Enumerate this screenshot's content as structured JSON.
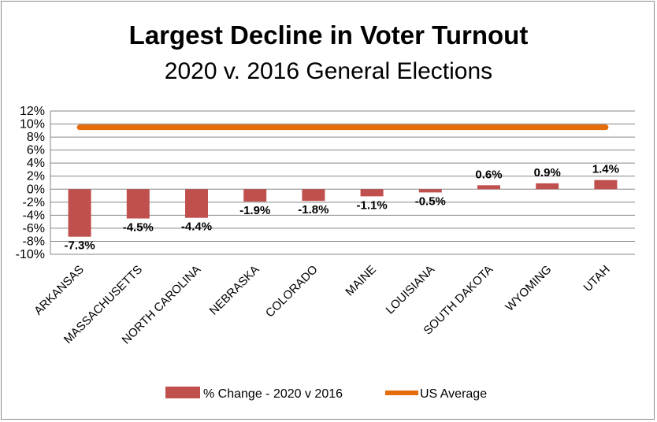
{
  "chart_data": {
    "type": "bar",
    "title": "Largest Decline in Voter Turnout",
    "subtitle": "2020 v. 2016 General Elections",
    "categories": [
      "ARKANSAS",
      "MASSACHUSETTS",
      "NORTH CAROLINA",
      "NEBRASKA",
      "COLORADO",
      "MAINE",
      "LOUISIANA",
      "SOUTH DAKOTA",
      "WYOMING",
      "UTAH"
    ],
    "series": [
      {
        "name": "% Change - 2020 v 2016",
        "type": "bar",
        "color": "#c0504d",
        "values": [
          -7.3,
          -4.5,
          -4.4,
          -1.9,
          -1.8,
          -1.1,
          -0.5,
          0.6,
          0.9,
          1.4
        ],
        "labels": [
          "-7.3%",
          "-4.5%",
          "-4.4%",
          "-1.9%",
          "-1.8%",
          "-1.1%",
          "-0.5%",
          "0.6%",
          "0.9%",
          "1.4%"
        ]
      },
      {
        "name": "US Average",
        "type": "line",
        "color": "#e46c0a",
        "value": 9.5
      }
    ],
    "ylim": [
      -10,
      12
    ],
    "ytick_values": [
      12,
      10,
      8,
      6,
      4,
      2,
      0,
      -2,
      -4,
      -6,
      -8,
      -10
    ],
    "ytick_labels": [
      "12%",
      "10%",
      "8%",
      "6%",
      "4%",
      "2%",
      "0%",
      "-2%",
      "-4%",
      "-6%",
      "-8%",
      "-10%"
    ],
    "grid": true,
    "legend_position": "bottom"
  }
}
